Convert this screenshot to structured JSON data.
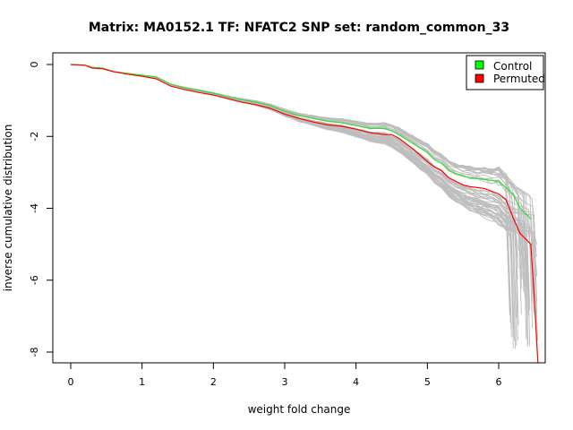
{
  "chart_data": {
    "type": "line",
    "title": "Matrix: MA0152.1 TF: NFATC2 SNP set: random_common_33",
    "xlabel": "weight fold change",
    "ylabel": "inverse cumulative distribution",
    "xlim": [
      0,
      6.5
    ],
    "ylim": [
      -8,
      0
    ],
    "x_ticks": [
      "0",
      "1",
      "2",
      "3",
      "4",
      "5",
      "6"
    ],
    "y_ticks": [
      "0",
      "-2",
      "-4",
      "-6",
      "-8"
    ],
    "grid": false,
    "legend": {
      "position": "top-right",
      "entries": [
        {
          "label": "Control",
          "color": "#00ff00"
        },
        {
          "label": "Permuted",
          "color": "#ff0000"
        }
      ]
    },
    "background_series": {
      "description_color": "#bebebe",
      "count": 60
    },
    "series": [
      {
        "name": "Control",
        "color": "#33dd33",
        "x": [
          0,
          0.2,
          0.3,
          0.45,
          0.6,
          0.8,
          1.0,
          1.2,
          1.4,
          1.6,
          1.8,
          2.0,
          2.2,
          2.4,
          2.6,
          2.8,
          3.0,
          3.2,
          3.4,
          3.6,
          3.8,
          4.0,
          4.2,
          4.4,
          4.5,
          4.6,
          4.8,
          5.0,
          5.1,
          5.2,
          5.3,
          5.4,
          5.5,
          5.6,
          5.8,
          6.0,
          6.2,
          6.3,
          6.4,
          6.45
        ],
        "y": [
          0,
          -0.02,
          -0.08,
          -0.1,
          -0.2,
          -0.25,
          -0.3,
          -0.35,
          -0.55,
          -0.65,
          -0.72,
          -0.8,
          -0.9,
          -0.98,
          -1.05,
          -1.15,
          -1.3,
          -1.42,
          -1.5,
          -1.58,
          -1.62,
          -1.7,
          -1.78,
          -1.78,
          -1.85,
          -1.95,
          -2.2,
          -2.45,
          -2.65,
          -2.75,
          -2.95,
          -3.05,
          -3.1,
          -3.15,
          -3.2,
          -3.25,
          -3.6,
          -4.0,
          -4.2,
          -4.3
        ]
      },
      {
        "name": "Permuted",
        "color": "#ff0000",
        "x": [
          0,
          0.2,
          0.3,
          0.45,
          0.6,
          0.8,
          1.0,
          1.2,
          1.4,
          1.6,
          1.8,
          2.0,
          2.2,
          2.4,
          2.6,
          2.8,
          3.0,
          3.2,
          3.4,
          3.6,
          3.8,
          4.0,
          4.2,
          4.4,
          4.5,
          4.6,
          4.8,
          5.0,
          5.1,
          5.2,
          5.3,
          5.4,
          5.5,
          5.6,
          5.8,
          6.0,
          6.1,
          6.2,
          6.3,
          6.45,
          6.5,
          6.55
        ],
        "y": [
          0,
          -0.02,
          -0.1,
          -0.12,
          -0.2,
          -0.27,
          -0.33,
          -0.4,
          -0.6,
          -0.7,
          -0.78,
          -0.85,
          -0.95,
          -1.05,
          -1.12,
          -1.22,
          -1.38,
          -1.5,
          -1.6,
          -1.68,
          -1.72,
          -1.8,
          -1.9,
          -1.95,
          -1.95,
          -2.05,
          -2.35,
          -2.7,
          -2.85,
          -2.95,
          -3.15,
          -3.25,
          -3.35,
          -3.4,
          -3.45,
          -3.6,
          -3.75,
          -4.25,
          -4.7,
          -5.0,
          -6.5,
          -8.3
        ]
      }
    ]
  }
}
